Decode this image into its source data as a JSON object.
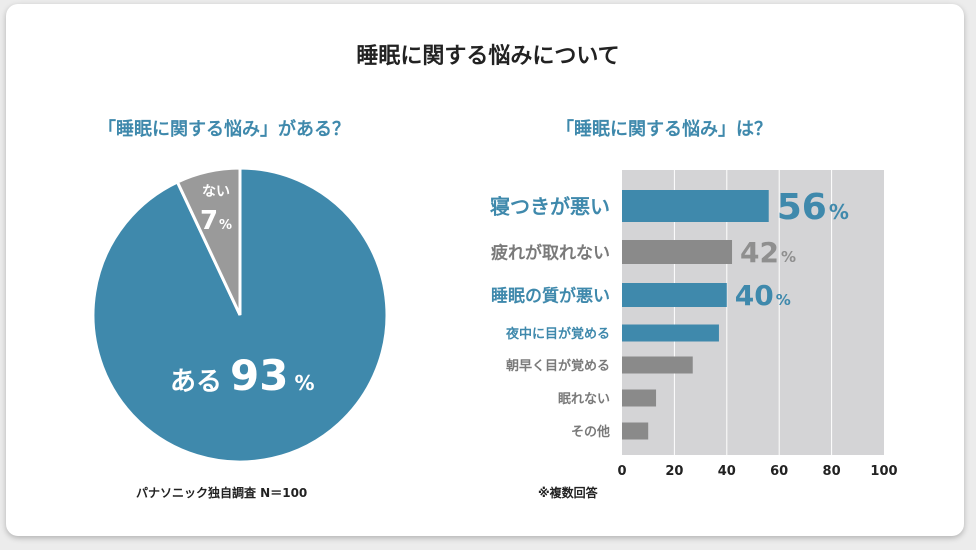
{
  "title": "睡眠に関する悩みについて",
  "colors": {
    "accent": "#3f89ac",
    "gray": "#8a8a8a",
    "plot_bg": "#d4d4d6"
  },
  "chart_data": [
    {
      "type": "pie",
      "title": "「睡眠に関する悩み」がある？",
      "slices": [
        {
          "label": "ある",
          "value": 93,
          "value_label": "93",
          "unit": "%",
          "color": "#3f89ac"
        },
        {
          "label": "ない",
          "value": 7,
          "value_label": "7",
          "unit": "%",
          "color": "#9a9a9a"
        }
      ],
      "note": "パナソニック独自調査 N＝100"
    },
    {
      "type": "bar",
      "orientation": "horizontal",
      "title": "「睡眠に関する悩み」は？",
      "categories": [
        "寝つきが悪い",
        "疲れが取れない",
        "睡眠の質が悪い",
        "夜中に目が覚める",
        "朝早く目が覚める",
        "眠れない",
        "その他"
      ],
      "values": [
        56,
        42,
        40,
        37,
        27,
        13,
        10
      ],
      "value_labels": [
        "56",
        "42",
        "40",
        null,
        null,
        null,
        null
      ],
      "unit": "%",
      "highlight": [
        true,
        false,
        true,
        true,
        false,
        false,
        false
      ],
      "xlim": [
        0,
        100
      ],
      "xticks": [
        "0",
        "20",
        "40",
        "60",
        "80",
        "100"
      ],
      "grid": true,
      "note": "※複数回答"
    }
  ]
}
